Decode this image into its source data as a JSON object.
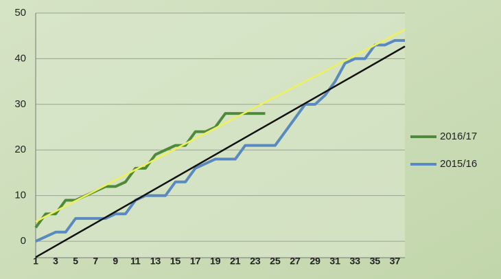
{
  "chart_data": {
    "type": "line",
    "x": [
      1,
      2,
      3,
      4,
      5,
      6,
      7,
      8,
      9,
      10,
      11,
      12,
      13,
      14,
      15,
      16,
      17,
      18,
      19,
      20,
      21,
      22,
      23,
      24,
      25,
      26,
      27,
      28,
      29,
      30,
      31,
      32,
      33,
      34,
      35,
      36,
      37,
      38
    ],
    "xlim": [
      1,
      38
    ],
    "xticks": [
      1,
      3,
      5,
      7,
      9,
      11,
      13,
      15,
      17,
      19,
      21,
      23,
      25,
      27,
      29,
      31,
      33,
      35,
      37
    ],
    "ylim": [
      -3.6,
      50
    ],
    "yticks": [
      0,
      10,
      20,
      30,
      40,
      50
    ],
    "grid": true,
    "series": [
      {
        "name": "2016/17",
        "color": "#4f8a3b",
        "values": [
          3,
          6,
          6,
          9,
          9,
          10,
          11,
          12,
          12,
          13,
          16,
          16,
          19,
          20,
          21,
          21,
          24,
          24,
          25,
          28,
          28,
          28,
          28,
          28,
          null,
          null,
          null,
          null,
          null,
          null,
          null,
          null,
          null,
          null,
          null,
          null,
          null,
          null
        ]
      },
      {
        "name": "2015/16",
        "color": "#5a89bf",
        "values": [
          0,
          1,
          2,
          2,
          5,
          5,
          5,
          5,
          6,
          6,
          9,
          10,
          10,
          10,
          13,
          13,
          16,
          17,
          18,
          18,
          18,
          21,
          21,
          21,
          21,
          24,
          27,
          30,
          30,
          32,
          35,
          39,
          40,
          40,
          43,
          43,
          44,
          44
        ]
      },
      {
        "color": "#eef15a",
        "x": [
          1,
          38
        ],
        "values": [
          4.3,
          46.4
        ]
      },
      {
        "color": "#111111",
        "x": [
          1,
          38
        ],
        "values": [
          -3.5,
          42.7
        ]
      }
    ],
    "legend": "right"
  }
}
